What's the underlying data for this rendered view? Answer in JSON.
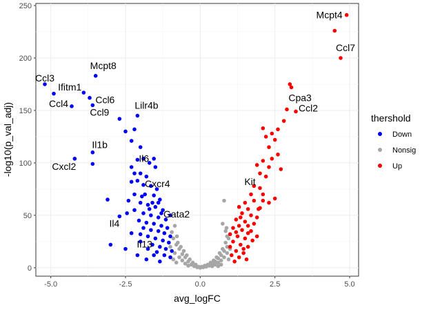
{
  "chart_data": {
    "type": "scatter",
    "xlabel": "avg_logFC",
    "ylabel": "-log10(p_val_adj)",
    "xlim": [
      -5.5,
      5.3
    ],
    "ylim": [
      -8,
      252
    ],
    "x_ticks": [
      -5.0,
      -2.5,
      0.0,
      2.5,
      5.0
    ],
    "x_tick_labels": [
      "-5.0",
      "-2.5",
      "0.0",
      "2.5",
      "5.0"
    ],
    "y_ticks": [
      0,
      50,
      100,
      150,
      200,
      250
    ],
    "y_tick_labels": [
      "0",
      "50",
      "100",
      "150",
      "200",
      "250"
    ],
    "grid": true,
    "legend": {
      "title": "thershold",
      "position": "right",
      "entries": [
        {
          "name": "Down",
          "color": "#0000ff"
        },
        {
          "name": "Nonsig",
          "color": "#a6a6a6"
        },
        {
          "name": "Up",
          "color": "#ff0000"
        }
      ]
    },
    "series": [
      {
        "name": "Down",
        "color": "#0000ff",
        "points": [
          [
            -5.2,
            175
          ],
          [
            -4.9,
            166
          ],
          [
            -4.3,
            154
          ],
          [
            -3.9,
            167
          ],
          [
            -3.7,
            162
          ],
          [
            -3.5,
            183
          ],
          [
            -3.6,
            155
          ],
          [
            -4.2,
            104
          ],
          [
            -3.6,
            110
          ],
          [
            -3.6,
            99
          ],
          [
            -2.7,
            142
          ],
          [
            -2.5,
            130
          ],
          [
            -2.1,
            145
          ],
          [
            -2.2,
            132
          ],
          [
            -3.1,
            65
          ],
          [
            -2.7,
            49
          ],
          [
            -3.0,
            22
          ],
          [
            -2.3,
            121
          ],
          [
            -2.1,
            103
          ],
          [
            -2.0,
            115
          ],
          [
            -1.9,
            104
          ],
          [
            -1.7,
            100
          ],
          [
            -1.55,
            104
          ],
          [
            -1.5,
            96
          ],
          [
            -2.3,
            96
          ],
          [
            -2.2,
            90
          ],
          [
            -1.8,
            87
          ],
          [
            -2.1,
            83
          ],
          [
            -1.9,
            79
          ],
          [
            -1.65,
            78
          ],
          [
            -1.45,
            75
          ],
          [
            -2.2,
            70
          ],
          [
            -1.85,
            70
          ],
          [
            -1.55,
            69
          ],
          [
            -1.35,
            65
          ],
          [
            -2.0,
            62
          ],
          [
            -1.75,
            60
          ],
          [
            -1.5,
            58
          ],
          [
            -1.25,
            55
          ],
          [
            -2.2,
            55
          ],
          [
            -1.9,
            52
          ],
          [
            -1.65,
            50
          ],
          [
            -1.4,
            48
          ],
          [
            -1.15,
            46
          ],
          [
            -1.0,
            50
          ],
          [
            -2.05,
            45
          ],
          [
            -1.8,
            43
          ],
          [
            -1.55,
            42
          ],
          [
            -1.3,
            40
          ],
          [
            -1.1,
            38
          ],
          [
            -1.9,
            38
          ],
          [
            -1.65,
            36
          ],
          [
            -1.4,
            35
          ],
          [
            -1.2,
            33
          ],
          [
            -1.0,
            30
          ],
          [
            -1.75,
            30
          ],
          [
            -1.5,
            28
          ],
          [
            -1.25,
            26
          ],
          [
            -1.05,
            24
          ],
          [
            -1.6,
            22
          ],
          [
            -1.35,
            20
          ],
          [
            -1.15,
            18
          ],
          [
            -0.95,
            16
          ],
          [
            -1.45,
            15
          ],
          [
            -1.2,
            12
          ],
          [
            -1.0,
            10
          ],
          [
            -2.3,
            33
          ],
          [
            -2.0,
            25
          ],
          [
            -1.75,
            18
          ],
          [
            -1.55,
            12
          ],
          [
            -2.5,
            18
          ],
          [
            -2.1,
            12
          ],
          [
            -1.8,
            8
          ],
          [
            -1.35,
            6
          ],
          [
            -2.4,
            64
          ],
          [
            -1.95,
            68
          ],
          [
            -1.7,
            56
          ],
          [
            -2.45,
            52
          ],
          [
            -1.6,
            62
          ],
          [
            -1.3,
            52
          ],
          [
            -2.3,
            82
          ],
          [
            -2.0,
            90
          ],
          [
            -1.4,
            62
          ],
          [
            -2.0,
            32
          ]
        ]
      },
      {
        "name": "Nonsig",
        "color": "#a6a6a6",
        "points": [
          [
            -0.95,
            34
          ],
          [
            -0.8,
            22
          ],
          [
            -0.7,
            18
          ],
          [
            -0.6,
            13
          ],
          [
            -0.5,
            10
          ],
          [
            -0.4,
            6
          ],
          [
            -0.3,
            3
          ],
          [
            -0.2,
            1.5
          ],
          [
            -0.1,
            0.5
          ],
          [
            0.0,
            0
          ],
          [
            0.1,
            0.5
          ],
          [
            0.2,
            1
          ],
          [
            0.3,
            2
          ],
          [
            0.4,
            4
          ],
          [
            0.5,
            6
          ],
          [
            0.6,
            9
          ],
          [
            0.7,
            12
          ],
          [
            0.8,
            16
          ],
          [
            0.9,
            20
          ],
          [
            0.95,
            28
          ],
          [
            0.85,
            35
          ],
          [
            0.75,
            42
          ],
          [
            0.8,
            64
          ],
          [
            -0.9,
            28
          ],
          [
            -0.75,
            24
          ],
          [
            -0.65,
            20
          ],
          [
            -0.55,
            16
          ],
          [
            -0.45,
            12
          ],
          [
            -0.35,
            8
          ],
          [
            -0.25,
            5
          ],
          [
            -0.15,
            3
          ],
          [
            -0.05,
            1
          ],
          [
            0.05,
            1
          ],
          [
            0.15,
            2
          ],
          [
            0.25,
            3
          ],
          [
            0.35,
            5
          ],
          [
            0.45,
            7
          ],
          [
            0.55,
            10
          ],
          [
            0.65,
            14
          ],
          [
            0.75,
            18
          ],
          [
            0.85,
            24
          ],
          [
            0.9,
            30
          ],
          [
            -1.0,
            20
          ],
          [
            -0.85,
            14
          ],
          [
            -0.7,
            10
          ],
          [
            -0.6,
            7
          ],
          [
            -0.5,
            4
          ],
          [
            -0.4,
            2
          ],
          [
            0.4,
            1.5
          ],
          [
            0.5,
            3
          ],
          [
            0.6,
            5
          ],
          [
            0.7,
            7
          ],
          [
            0.8,
            10
          ],
          [
            0.9,
            14
          ],
          [
            1.0,
            18
          ],
          [
            -0.9,
            8
          ],
          [
            -0.8,
            5
          ],
          [
            0.7,
            3
          ],
          [
            0.6,
            1.5
          ],
          [
            0.95,
            8
          ],
          [
            -0.85,
            40
          ],
          [
            -0.78,
            30
          ],
          [
            0.88,
            38
          ]
        ]
      },
      {
        "name": "Up",
        "color": "#ff0000",
        "points": [
          [
            4.9,
            241
          ],
          [
            4.5,
            226
          ],
          [
            4.7,
            200
          ],
          [
            3.0,
            175
          ],
          [
            3.05,
            172
          ],
          [
            3.2,
            149
          ],
          [
            2.9,
            151
          ],
          [
            2.8,
            140
          ],
          [
            2.1,
            133
          ],
          [
            2.2,
            125
          ],
          [
            2.6,
            132
          ],
          [
            2.4,
            128
          ],
          [
            2.5,
            122
          ],
          [
            2.3,
            115
          ],
          [
            2.6,
            108
          ],
          [
            2.1,
            102
          ],
          [
            2.4,
            104
          ],
          [
            2.7,
            94
          ],
          [
            2.0,
            90
          ],
          [
            1.9,
            98
          ],
          [
            2.3,
            96
          ],
          [
            2.2,
            87
          ],
          [
            1.8,
            78
          ],
          [
            2.0,
            76
          ],
          [
            1.7,
            70
          ],
          [
            2.1,
            70
          ],
          [
            2.5,
            66
          ],
          [
            1.5,
            62
          ],
          [
            1.8,
            64
          ],
          [
            2.3,
            62
          ],
          [
            1.3,
            58
          ],
          [
            1.6,
            56
          ],
          [
            2.0,
            57
          ],
          [
            1.4,
            52
          ],
          [
            1.7,
            50
          ],
          [
            1.9,
            48
          ],
          [
            1.2,
            46
          ],
          [
            1.5,
            44
          ],
          [
            1.6,
            40
          ],
          [
            1.3,
            40
          ],
          [
            1.1,
            38
          ],
          [
            1.4,
            36
          ],
          [
            1.7,
            35
          ],
          [
            1.0,
            32
          ],
          [
            1.25,
            30
          ],
          [
            1.5,
            28
          ],
          [
            1.1,
            25
          ],
          [
            1.35,
            22
          ],
          [
            1.6,
            20
          ],
          [
            1.2,
            16
          ],
          [
            1.45,
            14
          ],
          [
            1.05,
            12
          ],
          [
            1.3,
            10
          ],
          [
            1.55,
            8
          ],
          [
            1.15,
            6
          ],
          [
            1.8,
            42
          ],
          [
            1.9,
            30
          ],
          [
            1.45,
            18
          ],
          [
            1.35,
            48
          ],
          [
            1.6,
            33
          ],
          [
            1.75,
            26
          ],
          [
            1.2,
            34
          ],
          [
            1.0,
            20
          ],
          [
            2.1,
            64
          ],
          [
            1.95,
            56
          ]
        ]
      }
    ],
    "annotations": [
      {
        "text": "Mcpt4",
        "x": 4.9,
        "y": 241,
        "anchor": "end",
        "dx": -6,
        "dy": 5
      },
      {
        "text": "Ccl7",
        "x": 4.7,
        "y": 200,
        "anchor": "middle",
        "dx": 7,
        "dy": -10
      },
      {
        "text": "Mcpt8",
        "x": -3.5,
        "y": 183,
        "anchor": "start",
        "dx": -8,
        "dy": -10
      },
      {
        "text": "Ccl3",
        "x": -5.2,
        "y": 175,
        "anchor": "start",
        "dx": -14,
        "dy": -4
      },
      {
        "text": "Ifitm1",
        "x": -3.9,
        "y": 167,
        "anchor": "end",
        "dx": -3,
        "dy": -3
      },
      {
        "text": "Ccl6",
        "x": -3.6,
        "y": 155,
        "anchor": "start",
        "dx": 4,
        "dy": -3
      },
      {
        "text": "Ccl4",
        "x": -4.3,
        "y": 154,
        "anchor": "end",
        "dx": -5,
        "dy": 1
      },
      {
        "text": "Ccl9",
        "x": -3.6,
        "y": 155,
        "anchor": "start",
        "dx": -4,
        "dy": 15
      },
      {
        "text": "Lilr4b",
        "x": -2.1,
        "y": 145,
        "anchor": "start",
        "dx": -4,
        "dy": -10
      },
      {
        "text": "Cpa3",
        "x": 3.0,
        "y": 172,
        "anchor": "start",
        "dx": -2,
        "dy": 20
      },
      {
        "text": "Ccl2",
        "x": 3.2,
        "y": 149,
        "anchor": "start",
        "dx": 4,
        "dy": 0
      },
      {
        "text": "Il1b",
        "x": -3.6,
        "y": 110,
        "anchor": "start",
        "dx": -1,
        "dy": -6
      },
      {
        "text": "Cxcl2",
        "x": -4.2,
        "y": 104,
        "anchor": "end",
        "dx": 2,
        "dy": 16
      },
      {
        "text": "Il6",
        "x": -2.1,
        "y": 103,
        "anchor": "start",
        "dx": 2,
        "dy": 3
      },
      {
        "text": "Cxcr4",
        "x": -1.9,
        "y": 79,
        "anchor": "start",
        "dx": 2,
        "dy": 3
      },
      {
        "text": "Kit",
        "x": 1.9,
        "y": 98,
        "anchor": "end",
        "dx": -2,
        "dy": 29
      },
      {
        "text": "Gata2",
        "x": -1.0,
        "y": 50,
        "anchor": "start",
        "dx": -10,
        "dy": 3
      },
      {
        "text": "Il4",
        "x": -2.7,
        "y": 49,
        "anchor": "end",
        "dx": 0,
        "dy": 15
      },
      {
        "text": "Il13",
        "x": -1.8,
        "y": 8,
        "anchor": "start",
        "dx": -14,
        "dy": -17
      }
    ]
  }
}
